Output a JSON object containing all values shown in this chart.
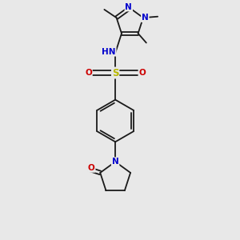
{
  "bg_color": "#e8e8e8",
  "bond_color": "#1a1a1a",
  "bond_width": 1.3,
  "atom_colors": {
    "N": "#0000cc",
    "O": "#cc0000",
    "S": "#b8b800",
    "H": "#4a7a7a",
    "C": "#1a1a1a"
  },
  "font_size": 7.5,
  "fig_width": 3.0,
  "fig_height": 3.0,
  "dpi": 100,
  "xlim": [
    0,
    10
  ],
  "ylim": [
    0,
    10
  ]
}
